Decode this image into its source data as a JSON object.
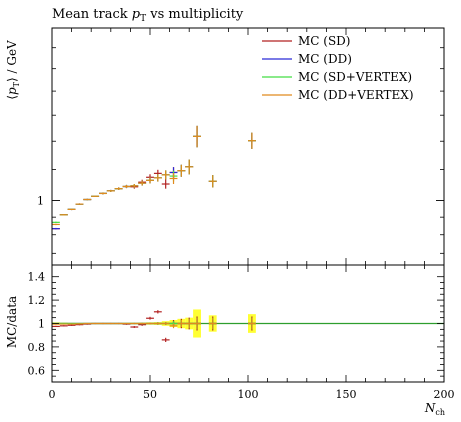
{
  "chart_data": [
    {
      "type": "line",
      "title": "Mean track p_T vs multiplicity",
      "title_parts": {
        "prefix": "Mean track ",
        "italic": "p",
        "sub": "T",
        "suffix": " vs multiplicity"
      },
      "ylabel": "⟨p_T⟩ / GeV",
      "ylabel_parts": {
        "prefix": "⟨",
        "italic": "p",
        "sub": "T",
        "suffix": "⟩ / GeV"
      },
      "y_scale": "log",
      "ylim": [
        0.82,
        1.7
      ],
      "xlim": [
        0,
        200
      ],
      "y_ticks": [
        1
      ],
      "y_tick_labels": [
        "1"
      ],
      "legend_position": "top-right",
      "series": [
        {
          "name": "MC (SD)",
          "color": "#b22222",
          "points": [
            [
              2,
              0.917
            ],
            [
              6,
              0.957
            ],
            [
              10,
              0.973
            ],
            [
              14,
              0.989
            ],
            [
              18,
              1.003
            ],
            [
              22,
              1.013
            ],
            [
              26,
              1.022
            ],
            [
              30,
              1.03
            ],
            [
              34,
              1.037
            ],
            [
              38,
              1.044
            ],
            [
              42,
              1.043
            ],
            [
              46,
              1.058
            ],
            [
              50,
              1.074
            ],
            [
              54,
              1.087
            ],
            [
              58,
              1.052
            ],
            [
              62,
              1.09
            ],
            [
              66,
              1.096
            ],
            [
              70,
              1.109
            ],
            [
              74,
              1.218
            ],
            [
              82,
              1.061
            ],
            [
              102,
              1.202
            ]
          ],
          "errors": [
            0.002,
            0.002,
            0.002,
            0.002,
            0.002,
            0.002,
            0.003,
            0.003,
            0.004,
            0.005,
            0.006,
            0.008,
            0.01,
            0.012,
            0.015,
            0.018,
            0.02,
            0.025,
            0.04,
            0.02,
            0.03
          ]
        },
        {
          "name": "MC (DD)",
          "color": "#2a2ad6",
          "points": [
            [
              2,
              0.917
            ],
            [
              6,
              0.957
            ],
            [
              10,
              0.973
            ],
            [
              14,
              0.989
            ],
            [
              18,
              1.003
            ],
            [
              22,
              1.013
            ],
            [
              26,
              1.022
            ],
            [
              30,
              1.03
            ],
            [
              34,
              1.037
            ],
            [
              38,
              1.044
            ],
            [
              42,
              1.046
            ],
            [
              46,
              1.055
            ],
            [
              50,
              1.064
            ],
            [
              54,
              1.072
            ],
            [
              58,
              1.082
            ],
            [
              62,
              1.09
            ],
            [
              66,
              1.096
            ],
            [
              70,
              1.109
            ],
            [
              74,
              1.218
            ],
            [
              82,
              1.061
            ],
            [
              102,
              1.202
            ]
          ],
          "errors": [
            0.002,
            0.002,
            0.002,
            0.002,
            0.002,
            0.002,
            0.003,
            0.003,
            0.004,
            0.005,
            0.006,
            0.008,
            0.01,
            0.012,
            0.015,
            0.018,
            0.02,
            0.025,
            0.04,
            0.02,
            0.03
          ]
        },
        {
          "name": "MC (SD+VERTEX)",
          "color": "#44dd44",
          "points": [
            [
              2,
              0.935
            ],
            [
              6,
              0.957
            ],
            [
              10,
              0.973
            ],
            [
              14,
              0.989
            ],
            [
              18,
              1.003
            ],
            [
              22,
              1.013
            ],
            [
              26,
              1.022
            ],
            [
              30,
              1.03
            ],
            [
              34,
              1.037
            ],
            [
              38,
              1.044
            ],
            [
              42,
              1.046
            ],
            [
              46,
              1.055
            ],
            [
              50,
              1.064
            ],
            [
              54,
              1.072
            ],
            [
              58,
              1.082
            ],
            [
              62,
              1.078
            ],
            [
              66,
              1.096
            ],
            [
              70,
              1.109
            ],
            [
              74,
              1.218
            ],
            [
              82,
              1.061
            ],
            [
              102,
              1.202
            ]
          ],
          "errors": [
            0.002,
            0.002,
            0.002,
            0.002,
            0.002,
            0.002,
            0.003,
            0.003,
            0.004,
            0.005,
            0.006,
            0.008,
            0.01,
            0.012,
            0.015,
            0.018,
            0.02,
            0.025,
            0.04,
            0.02,
            0.03
          ]
        },
        {
          "name": "MC (DD+VERTEX)",
          "color": "#e08a1e",
          "points": [
            [
              2,
              0.929
            ],
            [
              6,
              0.957
            ],
            [
              10,
              0.973
            ],
            [
              14,
              0.989
            ],
            [
              18,
              1.003
            ],
            [
              22,
              1.013
            ],
            [
              26,
              1.022
            ],
            [
              30,
              1.03
            ],
            [
              34,
              1.037
            ],
            [
              38,
              1.044
            ],
            [
              42,
              1.046
            ],
            [
              46,
              1.055
            ],
            [
              50,
              1.064
            ],
            [
              54,
              1.072
            ],
            [
              58,
              1.082
            ],
            [
              62,
              1.07
            ],
            [
              66,
              1.096
            ],
            [
              70,
              1.109
            ],
            [
              74,
              1.218
            ],
            [
              82,
              1.061
            ],
            [
              102,
              1.202
            ]
          ],
          "errors": [
            0.002,
            0.002,
            0.002,
            0.002,
            0.002,
            0.002,
            0.003,
            0.003,
            0.004,
            0.005,
            0.006,
            0.008,
            0.01,
            0.012,
            0.015,
            0.018,
            0.02,
            0.025,
            0.04,
            0.02,
            0.03
          ]
        }
      ]
    },
    {
      "type": "line",
      "ylabel": "MC/data",
      "xlabel": "N_ch",
      "xlabel_parts": {
        "italic": "N",
        "sub": "ch"
      },
      "xlim": [
        0,
        200
      ],
      "ylim": [
        0.5,
        1.5
      ],
      "x_ticks": [
        0,
        50,
        100,
        150,
        200
      ],
      "x_tick_labels": [
        "0",
        "50",
        "100",
        "150",
        "200"
      ],
      "y_ticks": [
        0.6,
        0.8,
        1.0,
        1.2,
        1.4
      ],
      "y_tick_labels": [
        "0.6",
        "0.8",
        "1",
        "1.2",
        "1.4"
      ],
      "uncertainty_band": {
        "color": "#ffff33",
        "bins": [
          [
            0,
            4,
            0.01
          ],
          [
            4,
            8,
            0.008
          ],
          [
            8,
            12,
            0.006
          ],
          [
            12,
            16,
            0.005
          ],
          [
            16,
            20,
            0.005
          ],
          [
            20,
            24,
            0.005
          ],
          [
            24,
            28,
            0.005
          ],
          [
            28,
            32,
            0.005
          ],
          [
            32,
            36,
            0.005
          ],
          [
            36,
            40,
            0.006
          ],
          [
            40,
            44,
            0.007
          ],
          [
            44,
            48,
            0.008
          ],
          [
            48,
            52,
            0.01
          ],
          [
            52,
            56,
            0.012
          ],
          [
            56,
            60,
            0.02
          ],
          [
            60,
            64,
            0.03
          ],
          [
            64,
            68,
            0.04
          ],
          [
            68,
            72,
            0.05
          ],
          [
            72,
            76,
            0.12
          ],
          [
            80,
            84,
            0.07
          ],
          [
            100,
            104,
            0.08
          ]
        ]
      },
      "series": [
        {
          "name": "MC (SD)",
          "color": "#b22222",
          "points": [
            [
              2,
              0.975
            ],
            [
              6,
              0.98
            ],
            [
              10,
              0.985
            ],
            [
              14,
              0.99
            ],
            [
              18,
              0.995
            ],
            [
              22,
              1.0
            ],
            [
              26,
              1.0
            ],
            [
              30,
              1.0
            ],
            [
              34,
              1.0
            ],
            [
              38,
              0.995
            ],
            [
              42,
              0.97
            ],
            [
              46,
              0.99
            ],
            [
              50,
              1.045
            ],
            [
              54,
              1.1
            ],
            [
              58,
              0.86
            ],
            [
              62,
              1.0
            ],
            [
              66,
              1.0
            ],
            [
              70,
              1.0
            ],
            [
              74,
              1.0
            ],
            [
              82,
              1.0
            ],
            [
              102,
              1.0
            ]
          ],
          "errors": [
            0.005,
            0.005,
            0.005,
            0.005,
            0.005,
            0.005,
            0.005,
            0.005,
            0.005,
            0.006,
            0.008,
            0.01,
            0.012,
            0.014,
            0.018,
            0.03,
            0.04,
            0.05,
            0.06,
            0.06,
            0.06
          ]
        },
        {
          "name": "MC (DD)",
          "color": "#2a2ad6",
          "points": [
            [
              2,
              1.0
            ],
            [
              6,
              1.0
            ],
            [
              10,
              1.0
            ],
            [
              14,
              1.0
            ],
            [
              18,
              1.0
            ],
            [
              22,
              1.0
            ],
            [
              26,
              1.0
            ],
            [
              30,
              1.0
            ],
            [
              34,
              1.0
            ],
            [
              38,
              1.0
            ],
            [
              42,
              1.0
            ],
            [
              46,
              1.0
            ],
            [
              50,
              1.0
            ],
            [
              54,
              1.0
            ],
            [
              58,
              1.0
            ],
            [
              62,
              1.0
            ],
            [
              66,
              1.0
            ],
            [
              70,
              1.0
            ],
            [
              74,
              1.0
            ],
            [
              82,
              1.0
            ],
            [
              102,
              1.0
            ]
          ],
          "errors": [
            0.004,
            0.004,
            0.004,
            0.004,
            0.004,
            0.004,
            0.004,
            0.004,
            0.004,
            0.004,
            0.005,
            0.006,
            0.008,
            0.01,
            0.012,
            0.02,
            0.03,
            0.04,
            0.05,
            0.05,
            0.05
          ]
        },
        {
          "name": "MC (SD+VERTEX)",
          "color": "#44dd44",
          "points": [
            [
              2,
              1.0
            ],
            [
              6,
              1.0
            ],
            [
              10,
              1.0
            ],
            [
              14,
              1.0
            ],
            [
              18,
              1.0
            ],
            [
              22,
              1.0
            ],
            [
              26,
              1.0
            ],
            [
              30,
              1.0
            ],
            [
              34,
              1.0
            ],
            [
              38,
              1.0
            ],
            [
              42,
              1.0
            ],
            [
              46,
              1.0
            ],
            [
              50,
              1.0
            ],
            [
              54,
              1.0
            ],
            [
              58,
              1.0
            ],
            [
              62,
              1.0
            ],
            [
              66,
              1.0
            ],
            [
              70,
              1.0
            ],
            [
              74,
              1.0
            ],
            [
              82,
              1.0
            ],
            [
              102,
              1.0
            ]
          ],
          "errors": [
            0.004,
            0.004,
            0.004,
            0.004,
            0.004,
            0.004,
            0.004,
            0.004,
            0.004,
            0.004,
            0.005,
            0.006,
            0.008,
            0.01,
            0.012,
            0.02,
            0.03,
            0.04,
            0.05,
            0.05,
            0.05
          ]
        },
        {
          "name": "MC (DD+VERTEX)",
          "color": "#e08a1e",
          "points": [
            [
              2,
              0.995
            ],
            [
              6,
              0.995
            ],
            [
              10,
              0.995
            ],
            [
              14,
              0.997
            ],
            [
              18,
              1.0
            ],
            [
              22,
              1.0
            ],
            [
              26,
              1.0
            ],
            [
              30,
              1.0
            ],
            [
              34,
              1.0
            ],
            [
              38,
              1.0
            ],
            [
              42,
              1.0
            ],
            [
              46,
              1.0
            ],
            [
              50,
              1.0
            ],
            [
              54,
              1.0
            ],
            [
              58,
              1.0
            ],
            [
              62,
              0.98
            ],
            [
              66,
              1.0
            ],
            [
              70,
              1.0
            ],
            [
              74,
              1.0
            ],
            [
              82,
              1.0
            ],
            [
              102,
              1.0
            ]
          ],
          "errors": [
            0.004,
            0.004,
            0.004,
            0.004,
            0.004,
            0.004,
            0.004,
            0.004,
            0.004,
            0.004,
            0.005,
            0.006,
            0.008,
            0.01,
            0.012,
            0.02,
            0.03,
            0.04,
            0.05,
            0.05,
            0.05
          ]
        }
      ]
    }
  ]
}
